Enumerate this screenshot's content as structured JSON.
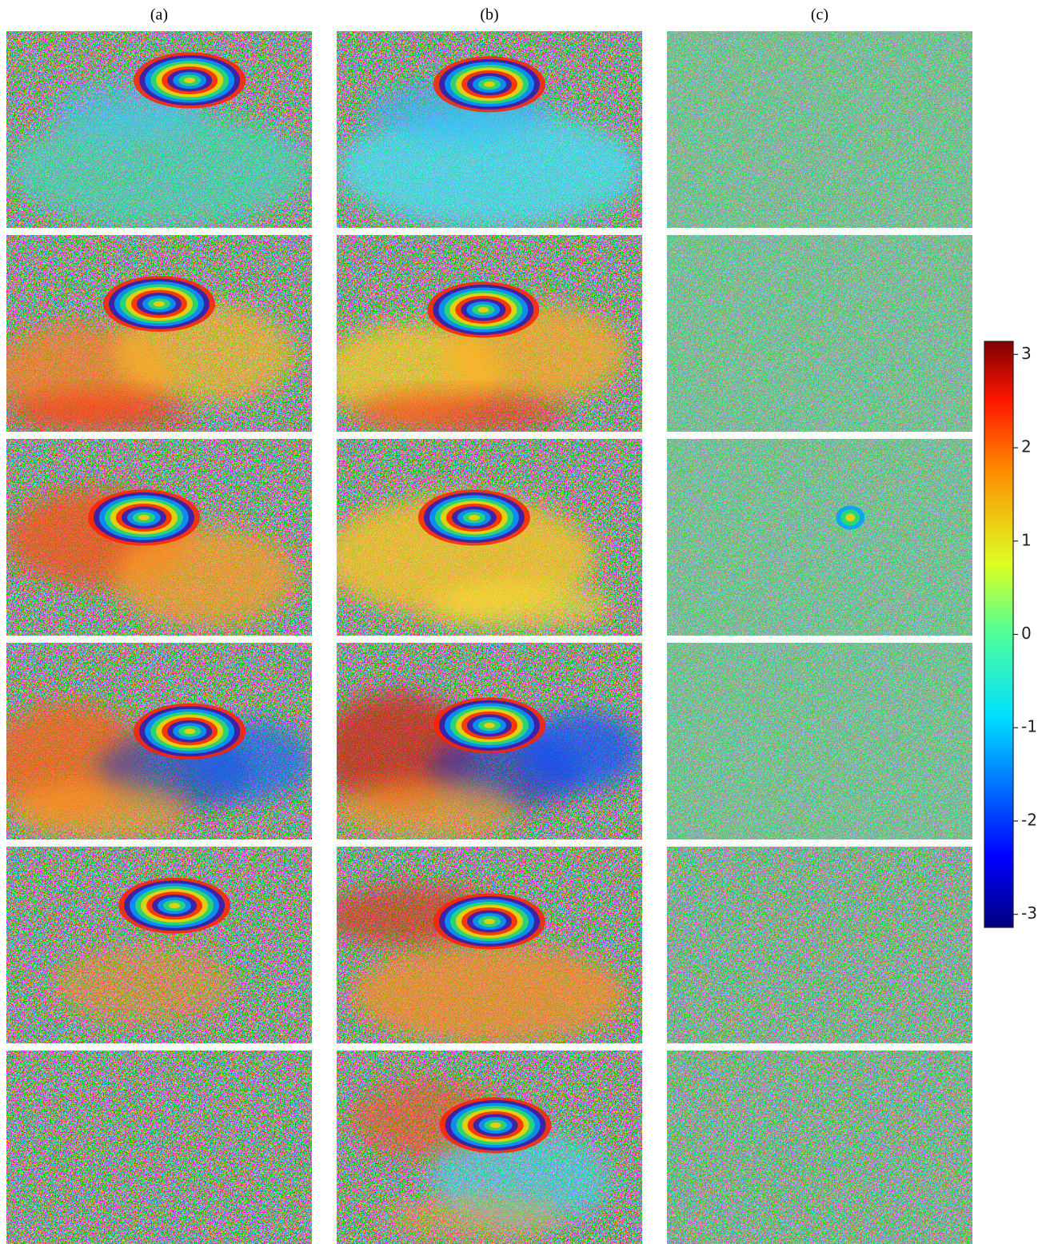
{
  "columns": [
    "(a)",
    "(b)",
    "(c)"
  ],
  "colorbar": {
    "colormap": "jet",
    "ylim": [
      -3.14,
      3.14
    ],
    "yticks": [
      -3,
      -2,
      -1,
      0,
      1,
      2,
      3
    ]
  }
}
